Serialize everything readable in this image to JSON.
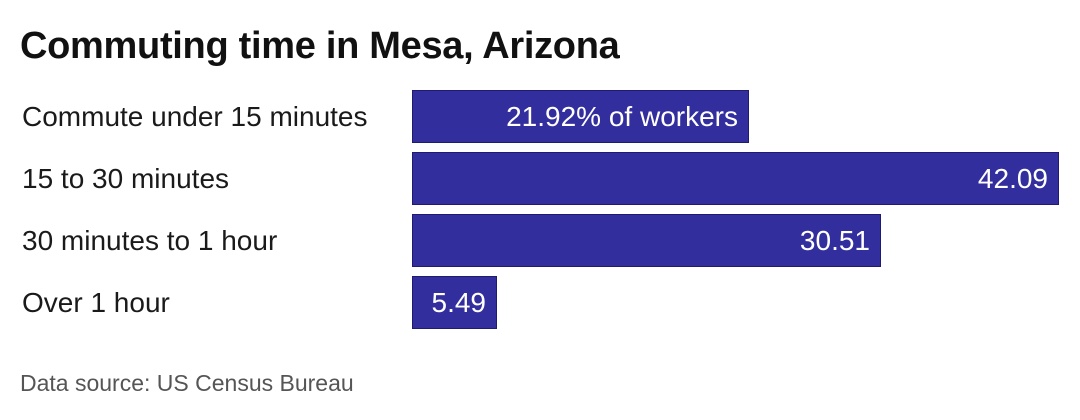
{
  "chart_data": {
    "type": "bar",
    "orientation": "horizontal",
    "title": "Commuting time in Mesa, Arizona",
    "categories": [
      "Commute under 15 minutes",
      "15 to 30 minutes",
      "30 minutes to 1 hour",
      "Over 1 hour"
    ],
    "values": [
      21.92,
      42.09,
      30.51,
      5.49
    ],
    "value_labels": [
      "21.92% of workers",
      "42.09",
      "30.51",
      "5.49"
    ],
    "xlim": [
      0,
      42.09
    ],
    "grid": false,
    "source": "Data source: US Census Bureau",
    "colors": {
      "bar": "#332e9e",
      "bar_stroke": "#1f1b70",
      "value_text": "#ffffff",
      "category_text": "#1a1a1a"
    }
  }
}
